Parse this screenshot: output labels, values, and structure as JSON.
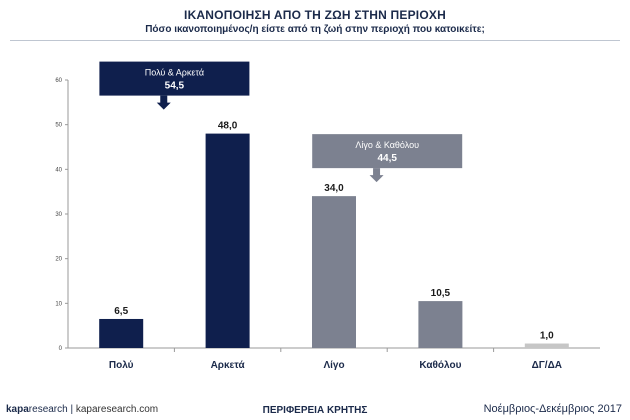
{
  "header": {
    "title": "ΙΚΑΝΟΠΟΙΗΣΗ ΑΠΟ ΤΗ ΖΩΗ ΣΤΗΝ ΠΕΡΙΟΧΗ",
    "subtitle": "Πόσο ικανοποιημένος/η είστε από τη ζωή στην περιοχή που κατοικείτε;"
  },
  "chart_data": {
    "type": "bar",
    "categories": [
      "Πολύ",
      "Αρκετά",
      "Λίγο",
      "Καθόλου",
      "ΔΓ/ΔΑ"
    ],
    "values": [
      6.5,
      48.0,
      34.0,
      10.5,
      1.0
    ],
    "value_labels": [
      "6,5",
      "48,0",
      "34,0",
      "10,5",
      "1,0"
    ],
    "bar_colors": [
      "#0f1f4d",
      "#0f1f4d",
      "#7c8190",
      "#7c8190",
      "#c6c6c6"
    ],
    "ylim": [
      0,
      60
    ],
    "yticks": [
      0,
      10,
      20,
      30,
      40,
      50,
      60
    ],
    "grid": false,
    "annotations": [
      {
        "label": "Πολύ & Αρκετά",
        "value": "54,5",
        "color": "#0f1f4d",
        "over_categories": [
          0,
          1
        ]
      },
      {
        "label": "Λίγο & Καθόλου",
        "value": "44,5",
        "color": "#7c8190",
        "over_categories": [
          2,
          3
        ]
      }
    ]
  },
  "footer": {
    "brand_kapa": "kapa",
    "brand_research": "research",
    "brand_separator": "|",
    "brand_site": "kaparesearch.com",
    "region": "ΠΕΡΙΦΕΡΕΙΑ ΚΡΗΤΗΣ",
    "date": "Νοέμβριος-Δεκέμβριος 2017"
  }
}
